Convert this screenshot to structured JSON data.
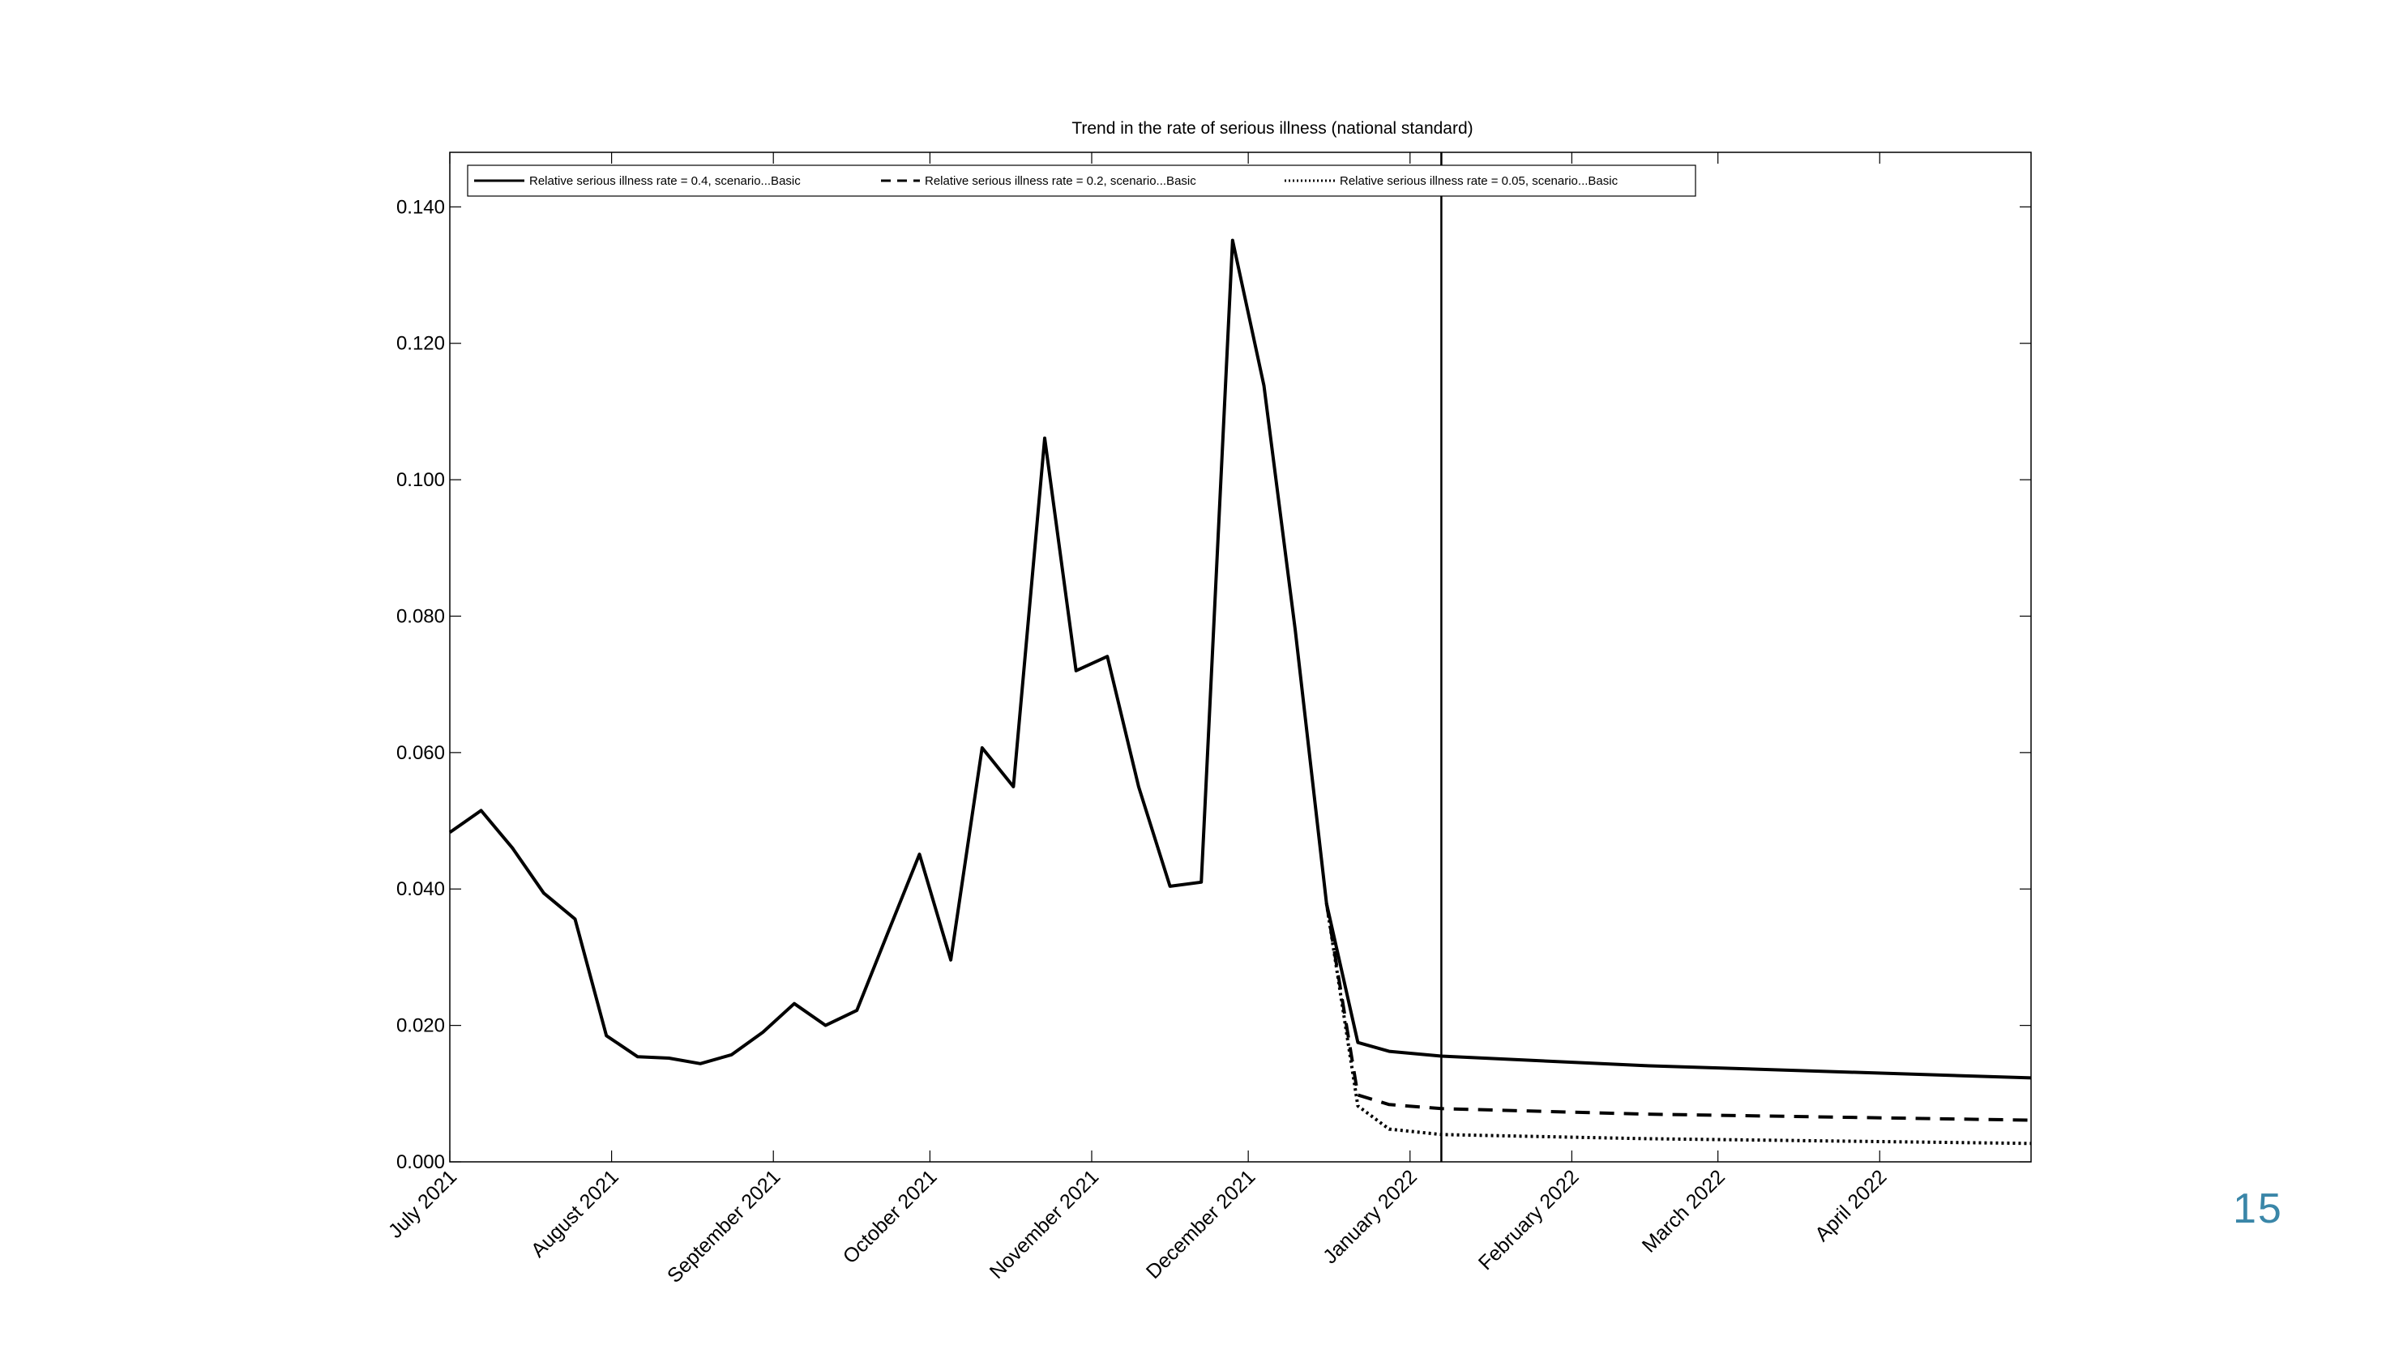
{
  "slide_number": "15",
  "colors": {
    "line": "#000000",
    "slide_number": "#3a86a8",
    "background": "#ffffff"
  },
  "chart_data": {
    "type": "line",
    "title": "Trend in the rate of serious illness (national standard)",
    "xlabel": "",
    "ylabel": "",
    "ylim": [
      0,
      0.148
    ],
    "xlim": [
      "2021-07-01",
      "2022-04-30"
    ],
    "y_ticks": [
      "0.000",
      "0.020",
      "0.040",
      "0.060",
      "0.080",
      "0.100",
      "0.120",
      "0.140"
    ],
    "x_ticks": [
      {
        "date": "2021-07-01",
        "label": "July 2021"
      },
      {
        "date": "2021-08-01",
        "label": "August 2021"
      },
      {
        "date": "2021-09-01",
        "label": "September 2021"
      },
      {
        "date": "2021-10-01",
        "label": "October 2021"
      },
      {
        "date": "2021-11-01",
        "label": "November 2021"
      },
      {
        "date": "2021-12-01",
        "label": "December 2021"
      },
      {
        "date": "2022-01-01",
        "label": "January 2022"
      },
      {
        "date": "2022-02-01",
        "label": "February 2022"
      },
      {
        "date": "2022-03-01",
        "label": "March 2022"
      },
      {
        "date": "2022-04-01",
        "label": "April 2022"
      }
    ],
    "grid": false,
    "legend_position": "top",
    "vertical_line": "2022-01-07",
    "series": [
      {
        "name": "Relative serious illness rate = 0.4, scenario...Basic",
        "style": "solid",
        "points": [
          [
            "2021-07-01",
            0.0483
          ],
          [
            "2021-07-07",
            0.0515
          ],
          [
            "2021-07-13",
            0.046
          ],
          [
            "2021-07-19",
            0.0394
          ],
          [
            "2021-07-25",
            0.0356
          ],
          [
            "2021-07-31",
            0.0185
          ],
          [
            "2021-08-06",
            0.0154
          ],
          [
            "2021-08-12",
            0.0152
          ],
          [
            "2021-08-18",
            0.0144
          ],
          [
            "2021-08-24",
            0.0157
          ],
          [
            "2021-08-30",
            0.019
          ],
          [
            "2021-09-05",
            0.0232
          ],
          [
            "2021-09-11",
            0.02
          ],
          [
            "2021-09-17",
            0.0222
          ],
          [
            "2021-09-23",
            0.0337
          ],
          [
            "2021-09-29",
            0.0451
          ],
          [
            "2021-10-05",
            0.0296
          ],
          [
            "2021-10-11",
            0.0607
          ],
          [
            "2021-10-17",
            0.055
          ],
          [
            "2021-10-23",
            0.1061
          ],
          [
            "2021-10-29",
            0.072
          ],
          [
            "2021-11-04",
            0.0741
          ],
          [
            "2021-11-10",
            0.055
          ],
          [
            "2021-11-16",
            0.0404
          ],
          [
            "2021-11-22",
            0.041
          ],
          [
            "2021-11-28",
            0.1351
          ],
          [
            "2021-12-04",
            0.1138
          ],
          [
            "2021-12-10",
            0.078
          ],
          [
            "2021-12-16",
            0.0379
          ],
          [
            "2021-12-22",
            0.0175
          ],
          [
            "2021-12-28",
            0.0162
          ],
          [
            "2022-01-07",
            0.0155
          ],
          [
            "2022-02-15",
            0.0141
          ],
          [
            "2022-04-30",
            0.0123
          ]
        ]
      },
      {
        "name": "Relative serious illness rate = 0.2, scenario...Basic",
        "style": "dashed",
        "points": [
          [
            "2021-12-16",
            0.0379
          ],
          [
            "2021-12-22",
            0.0098
          ],
          [
            "2021-12-28",
            0.0084
          ],
          [
            "2022-01-07",
            0.0078
          ],
          [
            "2022-02-15",
            0.007
          ],
          [
            "2022-04-30",
            0.0061
          ]
        ]
      },
      {
        "name": "Relative serious illness rate = 0.05, scenario...Basic",
        "style": "dotted",
        "points": [
          [
            "2021-12-16",
            0.0379
          ],
          [
            "2021-12-22",
            0.0082
          ],
          [
            "2021-12-28",
            0.0048
          ],
          [
            "2022-01-07",
            0.004
          ],
          [
            "2022-02-15",
            0.0034
          ],
          [
            "2022-04-30",
            0.0027
          ]
        ]
      }
    ]
  }
}
